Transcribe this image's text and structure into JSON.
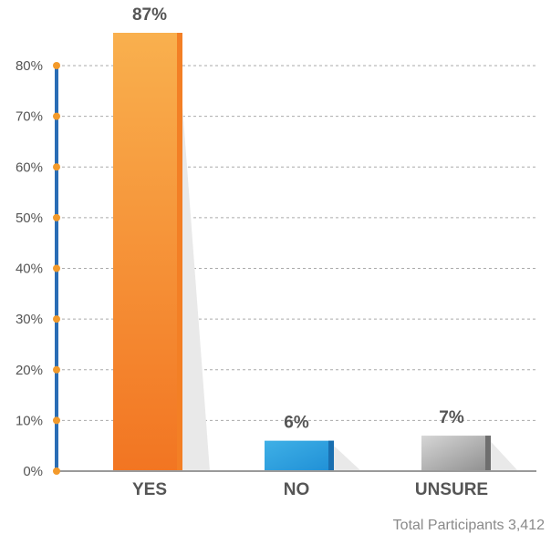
{
  "chart_data": {
    "type": "bar",
    "categories": [
      "YES",
      "NO",
      "UNSURE"
    ],
    "values": [
      87,
      6,
      7
    ],
    "value_labels": [
      "87%",
      "6%",
      "7%"
    ],
    "ylim": [
      0,
      80
    ],
    "yticks": [
      "0%",
      "10%",
      "20%",
      "30%",
      "40%",
      "50%",
      "60%",
      "70%",
      "80%"
    ],
    "ytick_values": [
      0,
      10,
      20,
      30,
      40,
      50,
      60,
      70,
      80
    ],
    "grid": true,
    "colors": {
      "YES": [
        "#f9b04e",
        "#f27522",
        "#f37f25"
      ],
      "NO": [
        "#3fb0e6",
        "#1f8fd6",
        "#1a6fb0"
      ],
      "UNSURE": [
        "#d6d6d6",
        "#8e8e8e",
        "#6e6e6e"
      ],
      "axis": "#2a6db5",
      "axis_dots": "#f39a2b",
      "grid": "#aaaaaa"
    }
  },
  "footer": {
    "total_participants": "Total Participants 3,412"
  }
}
